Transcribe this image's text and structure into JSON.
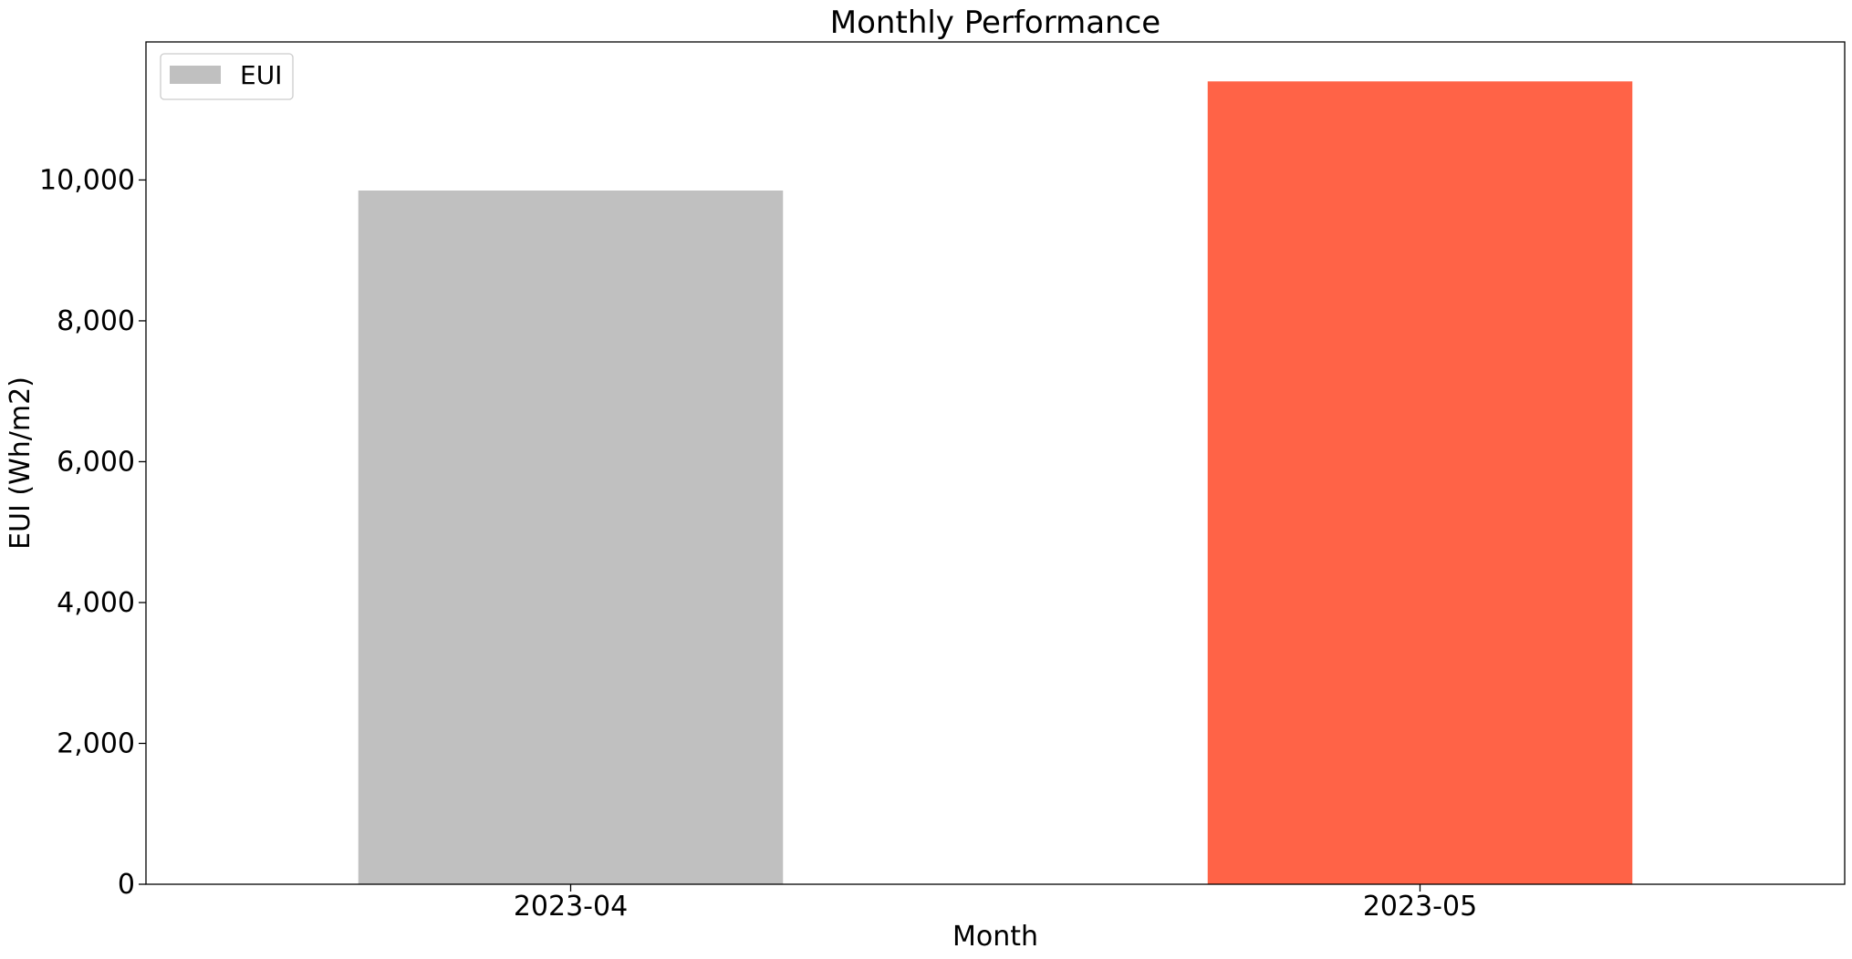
{
  "chart_data": {
    "type": "bar",
    "title": "Monthly Performance",
    "xlabel": "Month",
    "ylabel": "EUI (Wh/m2)",
    "categories": [
      "2023-04",
      "2023-05"
    ],
    "series": [
      {
        "name": "EUI",
        "values": [
          9850,
          11400
        ],
        "colors": [
          "#c0c0c0",
          "#ff6347"
        ]
      }
    ],
    "ylim": [
      0,
      11960
    ],
    "yticks": [
      0,
      2000,
      4000,
      6000,
      8000,
      10000
    ],
    "ytick_labels": [
      "0",
      "2,000",
      "4,000",
      "6,000",
      "8,000",
      "10,000"
    ],
    "legend": {
      "position": "top-left",
      "entries": [
        {
          "label": "EUI",
          "color": "#c0c0c0"
        }
      ]
    },
    "grid": false
  }
}
